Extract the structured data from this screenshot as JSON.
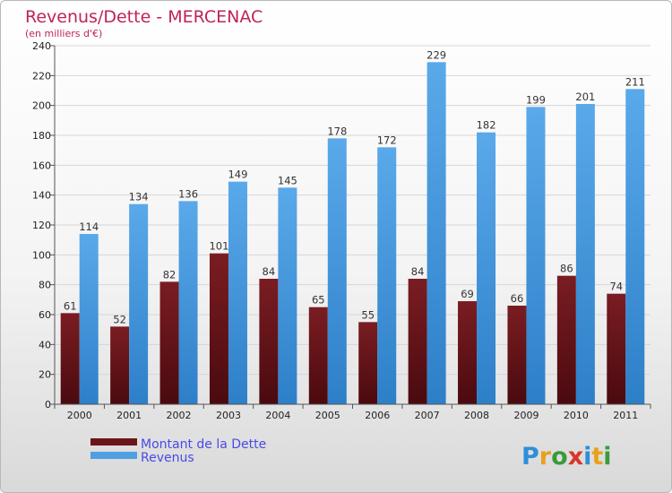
{
  "chart_data": {
    "type": "bar",
    "title": "Revenus/Dette - MERCENAC",
    "subtitle": "(en milliers d'€)",
    "categories": [
      "2000",
      "2001",
      "2002",
      "2003",
      "2004",
      "2005",
      "2006",
      "2007",
      "2008",
      "2009",
      "2010",
      "2011"
    ],
    "series": [
      {
        "name": "Montant de la Dette",
        "values": [
          61,
          52,
          82,
          101,
          84,
          65,
          55,
          84,
          69,
          66,
          86,
          74
        ],
        "color": "#7a1d22",
        "colorDark": "#4a0a0f"
      },
      {
        "name": "Revenus",
        "values": [
          114,
          134,
          136,
          149,
          145,
          178,
          172,
          229,
          182,
          199,
          201,
          211
        ],
        "color": "#5aa9ea",
        "colorDark": "#2d7fc8"
      }
    ],
    "ylim": [
      0,
      240
    ],
    "yticks": [
      0,
      20,
      40,
      60,
      80,
      100,
      120,
      140,
      160,
      180,
      200,
      220,
      240
    ],
    "grid": true,
    "legend_position": "bottom-left"
  },
  "logo": {
    "text": "Proxiti"
  }
}
